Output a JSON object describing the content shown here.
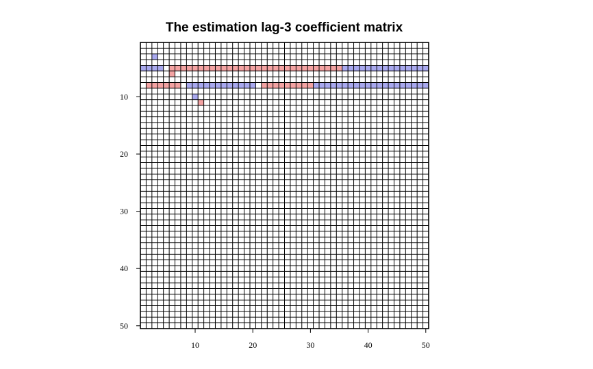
{
  "chart_data": {
    "type": "heatmap",
    "title": "The estimation lag-3 coefficient matrix",
    "xlabel": "",
    "ylabel": "",
    "n_rows": 50,
    "n_cols": 50,
    "x_ticks": [
      10,
      20,
      30,
      40,
      50
    ],
    "y_ticks": [
      10,
      20,
      30,
      40,
      50
    ],
    "xlim": [
      1,
      50
    ],
    "ylim": [
      50,
      1
    ],
    "grid": true,
    "colors": {
      "positive": "#f4a3a3",
      "negative": "#a9a9ef",
      "zero": "#ffffff",
      "grid": "#000000"
    },
    "cells": [
      {
        "row": 3,
        "col": 3,
        "sign": "negative"
      },
      {
        "row": 5,
        "col": 1,
        "sign": "negative"
      },
      {
        "row": 5,
        "col": 2,
        "sign": "negative"
      },
      {
        "row": 5,
        "col": 3,
        "sign": "negative"
      },
      {
        "row": 5,
        "col": 4,
        "sign": "negative"
      },
      {
        "row": 5,
        "col": 6,
        "sign": "positive"
      },
      {
        "row": 5,
        "col": 7,
        "sign": "positive"
      },
      {
        "row": 5,
        "col": 8,
        "sign": "positive"
      },
      {
        "row": 5,
        "col": 9,
        "sign": "positive"
      },
      {
        "row": 5,
        "col": 10,
        "sign": "positive"
      },
      {
        "row": 5,
        "col": 11,
        "sign": "positive"
      },
      {
        "row": 5,
        "col": 12,
        "sign": "positive"
      },
      {
        "row": 5,
        "col": 13,
        "sign": "positive"
      },
      {
        "row": 5,
        "col": 14,
        "sign": "positive"
      },
      {
        "row": 5,
        "col": 15,
        "sign": "positive"
      },
      {
        "row": 5,
        "col": 16,
        "sign": "positive"
      },
      {
        "row": 5,
        "col": 17,
        "sign": "positive"
      },
      {
        "row": 5,
        "col": 18,
        "sign": "positive"
      },
      {
        "row": 5,
        "col": 19,
        "sign": "positive"
      },
      {
        "row": 5,
        "col": 20,
        "sign": "positive"
      },
      {
        "row": 5,
        "col": 21,
        "sign": "positive"
      },
      {
        "row": 5,
        "col": 22,
        "sign": "positive"
      },
      {
        "row": 5,
        "col": 23,
        "sign": "positive"
      },
      {
        "row": 5,
        "col": 24,
        "sign": "positive"
      },
      {
        "row": 5,
        "col": 25,
        "sign": "positive"
      },
      {
        "row": 5,
        "col": 26,
        "sign": "positive"
      },
      {
        "row": 5,
        "col": 27,
        "sign": "positive"
      },
      {
        "row": 5,
        "col": 28,
        "sign": "positive"
      },
      {
        "row": 5,
        "col": 29,
        "sign": "positive"
      },
      {
        "row": 5,
        "col": 30,
        "sign": "positive"
      },
      {
        "row": 5,
        "col": 31,
        "sign": "positive"
      },
      {
        "row": 5,
        "col": 32,
        "sign": "positive"
      },
      {
        "row": 5,
        "col": 33,
        "sign": "positive"
      },
      {
        "row": 5,
        "col": 34,
        "sign": "positive"
      },
      {
        "row": 5,
        "col": 35,
        "sign": "positive"
      },
      {
        "row": 5,
        "col": 36,
        "sign": "negative"
      },
      {
        "row": 5,
        "col": 37,
        "sign": "negative"
      },
      {
        "row": 5,
        "col": 38,
        "sign": "negative"
      },
      {
        "row": 5,
        "col": 39,
        "sign": "negative"
      },
      {
        "row": 5,
        "col": 40,
        "sign": "negative"
      },
      {
        "row": 5,
        "col": 41,
        "sign": "negative"
      },
      {
        "row": 5,
        "col": 42,
        "sign": "negative"
      },
      {
        "row": 5,
        "col": 43,
        "sign": "negative"
      },
      {
        "row": 5,
        "col": 44,
        "sign": "negative"
      },
      {
        "row": 5,
        "col": 45,
        "sign": "negative"
      },
      {
        "row": 5,
        "col": 46,
        "sign": "negative"
      },
      {
        "row": 5,
        "col": 47,
        "sign": "negative"
      },
      {
        "row": 5,
        "col": 48,
        "sign": "negative"
      },
      {
        "row": 5,
        "col": 49,
        "sign": "negative"
      },
      {
        "row": 5,
        "col": 50,
        "sign": "negative"
      },
      {
        "row": 6,
        "col": 6,
        "sign": "positive"
      },
      {
        "row": 8,
        "col": 2,
        "sign": "positive"
      },
      {
        "row": 8,
        "col": 3,
        "sign": "positive"
      },
      {
        "row": 8,
        "col": 4,
        "sign": "positive"
      },
      {
        "row": 8,
        "col": 5,
        "sign": "positive"
      },
      {
        "row": 8,
        "col": 6,
        "sign": "positive"
      },
      {
        "row": 8,
        "col": 7,
        "sign": "positive"
      },
      {
        "row": 8,
        "col": 9,
        "sign": "negative"
      },
      {
        "row": 8,
        "col": 10,
        "sign": "negative"
      },
      {
        "row": 8,
        "col": 11,
        "sign": "negative"
      },
      {
        "row": 8,
        "col": 12,
        "sign": "negative"
      },
      {
        "row": 8,
        "col": 13,
        "sign": "negative"
      },
      {
        "row": 8,
        "col": 14,
        "sign": "negative"
      },
      {
        "row": 8,
        "col": 15,
        "sign": "negative"
      },
      {
        "row": 8,
        "col": 16,
        "sign": "negative"
      },
      {
        "row": 8,
        "col": 17,
        "sign": "negative"
      },
      {
        "row": 8,
        "col": 18,
        "sign": "negative"
      },
      {
        "row": 8,
        "col": 19,
        "sign": "negative"
      },
      {
        "row": 8,
        "col": 20,
        "sign": "negative"
      },
      {
        "row": 8,
        "col": 22,
        "sign": "positive"
      },
      {
        "row": 8,
        "col": 23,
        "sign": "positive"
      },
      {
        "row": 8,
        "col": 24,
        "sign": "positive"
      },
      {
        "row": 8,
        "col": 25,
        "sign": "positive"
      },
      {
        "row": 8,
        "col": 26,
        "sign": "positive"
      },
      {
        "row": 8,
        "col": 27,
        "sign": "positive"
      },
      {
        "row": 8,
        "col": 28,
        "sign": "positive"
      },
      {
        "row": 8,
        "col": 29,
        "sign": "positive"
      },
      {
        "row": 8,
        "col": 30,
        "sign": "positive"
      },
      {
        "row": 8,
        "col": 31,
        "sign": "negative"
      },
      {
        "row": 8,
        "col": 32,
        "sign": "negative"
      },
      {
        "row": 8,
        "col": 33,
        "sign": "negative"
      },
      {
        "row": 8,
        "col": 34,
        "sign": "negative"
      },
      {
        "row": 8,
        "col": 35,
        "sign": "negative"
      },
      {
        "row": 8,
        "col": 36,
        "sign": "negative"
      },
      {
        "row": 8,
        "col": 37,
        "sign": "negative"
      },
      {
        "row": 8,
        "col": 38,
        "sign": "negative"
      },
      {
        "row": 8,
        "col": 39,
        "sign": "negative"
      },
      {
        "row": 8,
        "col": 40,
        "sign": "negative"
      },
      {
        "row": 8,
        "col": 41,
        "sign": "negative"
      },
      {
        "row": 8,
        "col": 42,
        "sign": "negative"
      },
      {
        "row": 8,
        "col": 43,
        "sign": "negative"
      },
      {
        "row": 8,
        "col": 44,
        "sign": "negative"
      },
      {
        "row": 8,
        "col": 45,
        "sign": "negative"
      },
      {
        "row": 8,
        "col": 46,
        "sign": "negative"
      },
      {
        "row": 8,
        "col": 47,
        "sign": "negative"
      },
      {
        "row": 8,
        "col": 48,
        "sign": "negative"
      },
      {
        "row": 8,
        "col": 49,
        "sign": "negative"
      },
      {
        "row": 8,
        "col": 50,
        "sign": "negative"
      },
      {
        "row": 10,
        "col": 10,
        "sign": "negative"
      },
      {
        "row": 11,
        "col": 11,
        "sign": "positive"
      }
    ]
  }
}
